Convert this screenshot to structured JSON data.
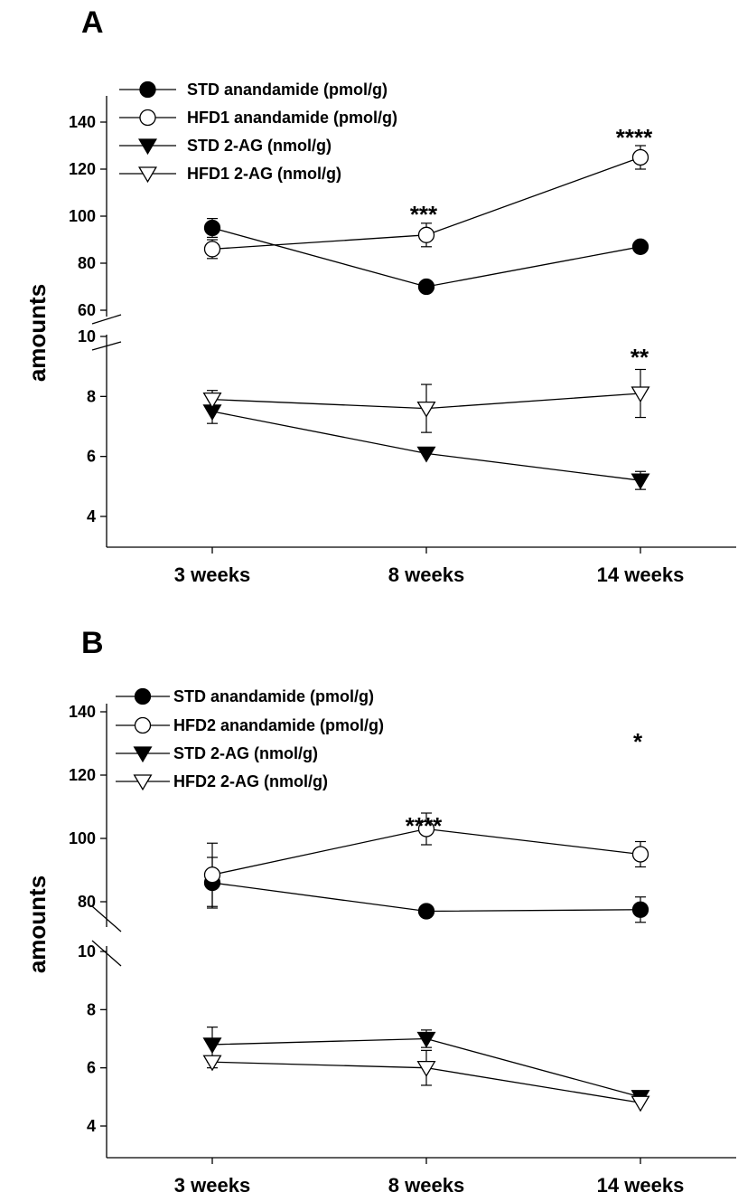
{
  "chart_data": [
    {
      "panel": "A",
      "type": "line",
      "ylabel": "amounts",
      "categories": [
        "3 weeks",
        "8 weeks",
        "14 weeks"
      ],
      "axis_break": true,
      "upper_yticks": [
        "60",
        "80",
        "100",
        "120",
        "140"
      ],
      "lower_yticks": [
        "4",
        "6",
        "8",
        "10"
      ],
      "legend_position": "top-left",
      "series": [
        {
          "name": "STD anandamide (pmol/g)",
          "marker": "filled-circle",
          "axis": "upper",
          "values": [
            95,
            70,
            87
          ],
          "errors": [
            4,
            0,
            0
          ]
        },
        {
          "name": "HFD1 anandamide (pmol/g)",
          "marker": "open-circle",
          "axis": "upper",
          "values": [
            86,
            92,
            125
          ],
          "errors": [
            4,
            5,
            5
          ]
        },
        {
          "name": "STD 2-AG (nmol/g)",
          "marker": "filled-triangle-down",
          "axis": "lower",
          "values": [
            7.5,
            6.1,
            5.2
          ],
          "errors": [
            0.4,
            0,
            0.3
          ]
        },
        {
          "name": "HFD1 2-AG (nmol/g)",
          "marker": "open-triangle-down",
          "axis": "lower",
          "values": [
            7.9,
            7.6,
            8.1
          ],
          "errors": [
            0.3,
            0.8,
            0.8
          ]
        }
      ],
      "annotations": [
        {
          "text": "***",
          "category": "8 weeks"
        },
        {
          "text": "****",
          "category": "14 weeks"
        },
        {
          "text": "**",
          "category": "14 weeks"
        }
      ]
    },
    {
      "panel": "B",
      "type": "line",
      "ylabel": "amounts",
      "categories": [
        "3 weeks",
        "8 weeks",
        "14 weeks"
      ],
      "axis_break": true,
      "upper_yticks": [
        "80",
        "100",
        "120",
        "140"
      ],
      "lower_yticks": [
        "4",
        "6",
        "8",
        "10"
      ],
      "legend_position": "top-left",
      "series": [
        {
          "name": "STD anandamide (pmol/g)",
          "marker": "filled-circle",
          "axis": "upper",
          "values": [
            86,
            77,
            77.5
          ],
          "errors": [
            8,
            0,
            4
          ]
        },
        {
          "name": "HFD2 anandamide (pmol/g)",
          "marker": "open-circle",
          "axis": "upper",
          "values": [
            88.5,
            103,
            95
          ],
          "errors": [
            10,
            5,
            4
          ]
        },
        {
          "name": "STD 2-AG (nmol/g)",
          "marker": "filled-triangle-down",
          "axis": "lower",
          "values": [
            6.8,
            7.0,
            5.0
          ],
          "errors": [
            0.6,
            0.3,
            0
          ]
        },
        {
          "name": "HFD2 2-AG (nmol/g)",
          "marker": "open-triangle-down",
          "axis": "lower",
          "values": [
            6.2,
            6.0,
            4.8
          ],
          "errors": [
            0.2,
            0.6,
            0
          ]
        }
      ],
      "annotations": [
        {
          "text": "****",
          "category": "8 weeks"
        },
        {
          "text": "*",
          "category": "14 weeks"
        }
      ]
    }
  ]
}
